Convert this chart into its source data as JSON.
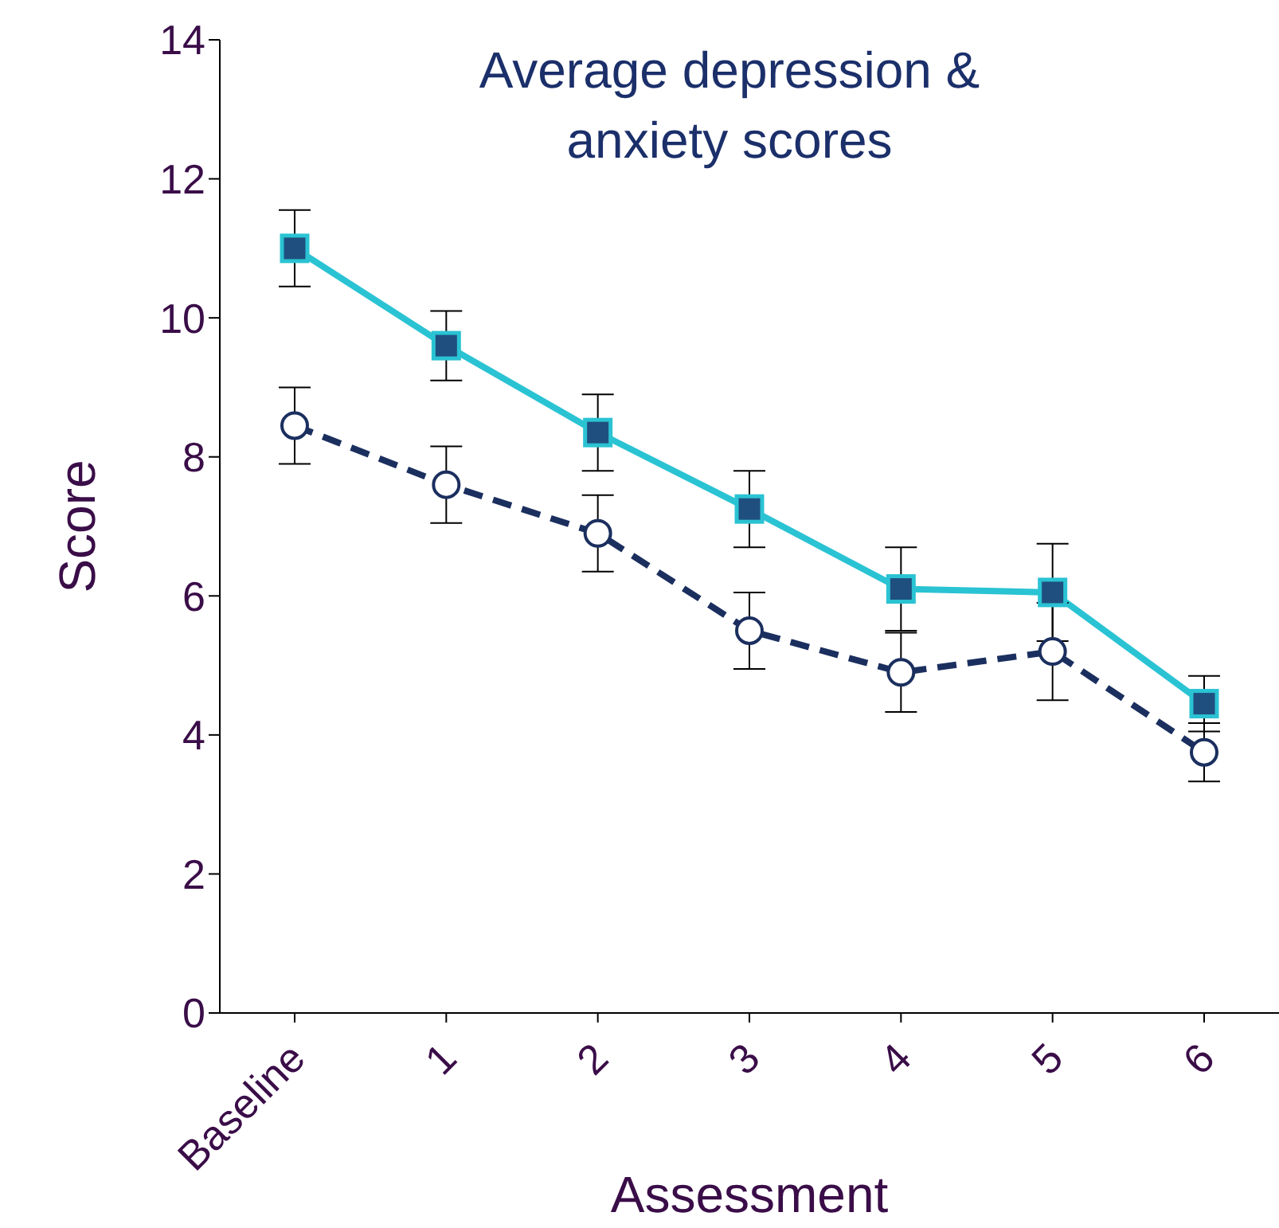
{
  "chart_data": {
    "type": "line",
    "title": "Average depression & anxiety scores",
    "xlabel": "Assessment",
    "ylabel": "Score",
    "categories": [
      "Baseline",
      "1",
      "2",
      "3",
      "4",
      "5",
      "6"
    ],
    "series": [
      {
        "color": "#2ac3d3",
        "marker": "square",
        "line_style": "solid",
        "values": [
          11.0,
          9.6,
          8.35,
          7.25,
          6.1,
          6.05,
          4.45
        ],
        "errors": [
          0.55,
          0.5,
          0.55,
          0.55,
          0.6,
          0.7,
          0.4
        ]
      },
      {
        "color": "#1b2f5f",
        "marker": "circle",
        "line_style": "dashed",
        "values": [
          8.45,
          7.6,
          6.9,
          5.5,
          4.9,
          5.2,
          3.75
        ],
        "errors": [
          0.55,
          0.55,
          0.55,
          0.55,
          0.57,
          0.7,
          0.42
        ]
      }
    ],
    "ylim": [
      0,
      14
    ],
    "yticks": [
      0,
      2,
      4,
      6,
      8,
      10,
      12,
      14
    ],
    "grid": false,
    "legend": false
  }
}
